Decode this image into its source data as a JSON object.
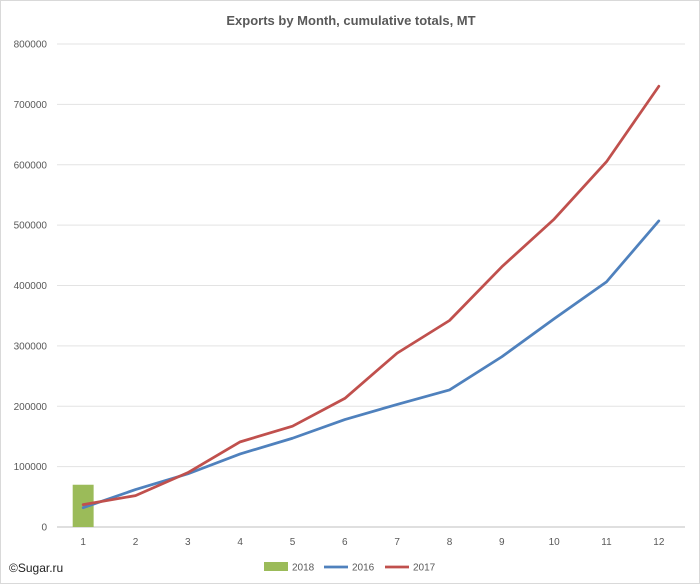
{
  "chart_data": {
    "type": "line",
    "title": "Exports by Month, cumulative totals, MT",
    "xlabel": "",
    "ylabel": "",
    "categories": [
      "1",
      "2",
      "3",
      "4",
      "5",
      "6",
      "7",
      "8",
      "9",
      "10",
      "11",
      "12"
    ],
    "ylim": [
      0,
      800000
    ],
    "yticks": [
      "0",
      "100000",
      "200000",
      "300000",
      "400000",
      "500000",
      "600000",
      "700000",
      "800000"
    ],
    "grid": true,
    "legend_position": "bottom",
    "series": [
      {
        "name": "2018",
        "type": "bar",
        "color": "#9bbb59",
        "values": [
          70000,
          null,
          null,
          null,
          null,
          null,
          null,
          null,
          null,
          null,
          null,
          null
        ]
      },
      {
        "name": "2016",
        "type": "line",
        "color": "#4f81bd",
        "values": [
          32000,
          62000,
          88000,
          121000,
          147000,
          178000,
          203000,
          227000,
          282000,
          345000,
          406000,
          507000
        ]
      },
      {
        "name": "2017",
        "type": "line",
        "color": "#c0504d",
        "values": [
          37000,
          52000,
          90000,
          141000,
          167000,
          213000,
          288000,
          342000,
          431000,
          510000,
          605000,
          730000
        ]
      }
    ]
  },
  "credit": "©Sugar.ru"
}
